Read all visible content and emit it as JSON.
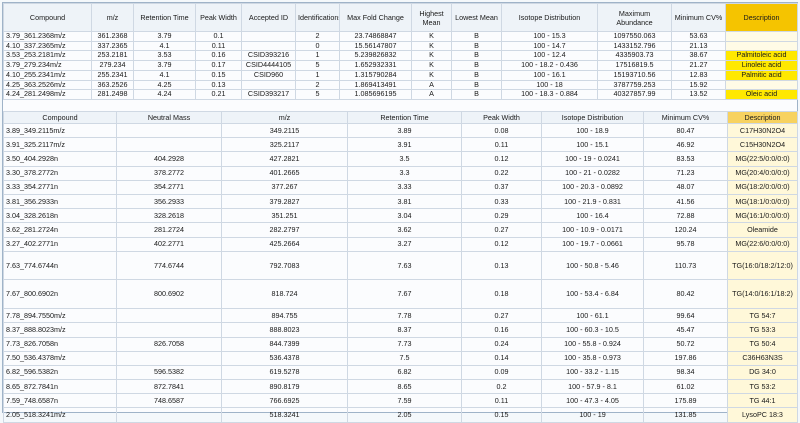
{
  "table1": {
    "headers": [
      "Compound",
      "m/z",
      "Retention Time",
      "Peak Width",
      "Accepted ID",
      "Identifications",
      "Max Fold Change",
      "Highest Mean",
      "Lowest Mean",
      "Isotope Distribution",
      "Maximum Abundance",
      "Minimum CV%",
      "Description"
    ],
    "rows": [
      [
        "3.79_361.2368m/z",
        "361.2368",
        "3.79",
        "0.1",
        "",
        "2",
        "23.74868847",
        "K",
        "B",
        "100 - 15.3",
        "1097550.063",
        "53.63",
        ""
      ],
      [
        "4.10_337.2365m/z",
        "337.2365",
        "4.1",
        "0.11",
        "",
        "0",
        "15.56147807",
        "K",
        "B",
        "100 - 14.7",
        "1433152.796",
        "21.13",
        ""
      ],
      [
        "3.53_253.2181m/z",
        "253.2181",
        "3.53",
        "0.16",
        "CSID393216",
        "1",
        "5.239826832",
        "K",
        "B",
        "100 - 12.4",
        "4335903.73",
        "38.67",
        "Palmitoleic acid"
      ],
      [
        "3.79_279.234m/z",
        "279.234",
        "3.79",
        "0.17",
        "CSID4444105",
        "5",
        "1.652932331",
        "K",
        "B",
        "100 - 18.2 - 0.436",
        "17516819.5",
        "21.27",
        "Linoleic acid"
      ],
      [
        "4.10_255.2341m/z",
        "255.2341",
        "4.1",
        "0.15",
        "CSID960",
        "1",
        "1.315790284",
        "K",
        "B",
        "100 - 16.1",
        "15193710.56",
        "12.83",
        "Palmitic acid"
      ],
      [
        "4.25_363.2526m/z",
        "363.2526",
        "4.25",
        "0.13",
        "",
        "2",
        "1.869413491",
        "A",
        "B",
        "100 - 18",
        "3787759.253",
        "15.92",
        ""
      ],
      [
        "4.24_281.2498m/z",
        "281.2498",
        "4.24",
        "0.21",
        "CSID393217",
        "5",
        "1.085696195",
        "A",
        "B",
        "100 - 18.3 - 0.884",
        "40327857.99",
        "13.52",
        "Oleic acid"
      ]
    ]
  },
  "table2": {
    "headers": [
      "Compound",
      "Neutral Mass",
      "m/z",
      "Retention Time",
      "Peak Width",
      "Isotope Distribution",
      "Minimum CV%",
      "Description"
    ],
    "rows": [
      [
        "3.89_349.2115m/z",
        "",
        "349.2115",
        "3.89",
        "0.08",
        "100 - 18.9",
        "80.47",
        "C17H30N2O4"
      ],
      [
        "3.91_325.2117m/z",
        "",
        "325.2117",
        "3.91",
        "0.11",
        "100 - 15.1",
        "46.92",
        "C15H30N2O4"
      ],
      [
        "3.50_404.2928n",
        "404.2928",
        "427.2821",
        "3.5",
        "0.12",
        "100 - 19 - 0.0241",
        "83.53",
        "MG(22:5/0:0/0:0)"
      ],
      [
        "3.30_378.2772n",
        "378.2772",
        "401.2665",
        "3.3",
        "0.22",
        "100 - 21 - 0.0282",
        "71.23",
        "MG(20:4/0:0/0:0)"
      ],
      [
        "3.33_354.2771n",
        "354.2771",
        "377.267",
        "3.33",
        "0.37",
        "100 - 20.3 - 0.0892",
        "48.07",
        "MG(18:2/0:0/0:0)"
      ],
      [
        "3.81_356.2933n",
        "356.2933",
        "379.2827",
        "3.81",
        "0.33",
        "100 - 21.9 - 0.831",
        "41.56",
        "MG(18:1/0:0/0:0)"
      ],
      [
        "3.04_328.2618n",
        "328.2618",
        "351.251",
        "3.04",
        "0.29",
        "100 - 16.4",
        "72.88",
        "MG(16:1/0:0/0:0)"
      ],
      [
        "3.62_281.2724n",
        "281.2724",
        "282.2797",
        "3.62",
        "0.27",
        "100 - 10.9 - 0.0171",
        "120.24",
        "Oleamide"
      ],
      [
        "3.27_402.2771n",
        "402.2771",
        "425.2664",
        "3.27",
        "0.12",
        "100 - 19.7 - 0.0661",
        "95.78",
        "MG(22:6/0:0/0:0)"
      ],
      [
        "7.63_774.6744n",
        "774.6744",
        "792.7083",
        "7.63",
        "0.13",
        "100 - 50.8 - 5.46",
        "110.73",
        "TG(16:0/18:2/12:0)"
      ],
      [
        "7.67_800.6902n",
        "800.6902",
        "818.724",
        "7.67",
        "0.18",
        "100 - 53.4 - 6.84",
        "80.42",
        "TG(14:0/16:1/18:2)"
      ],
      [
        "7.78_894.7550m/z",
        "",
        "894.755",
        "7.78",
        "0.27",
        "100 - 61.1",
        "99.64",
        "TG 54:7"
      ],
      [
        "8.37_888.8023m/z",
        "",
        "888.8023",
        "8.37",
        "0.16",
        "100 - 60.3 - 10.5",
        "45.47",
        "TG 53:3"
      ],
      [
        "7.73_826.7058n",
        "826.7058",
        "844.7399",
        "7.73",
        "0.24",
        "100 - 55.8 - 0.924",
        "50.72",
        "TG 50:4"
      ],
      [
        "7.50_536.4378m/z",
        "",
        "536.4378",
        "7.5",
        "0.14",
        "100 - 35.8 - 0.973",
        "197.86",
        "C36H63N3S"
      ],
      [
        "6.82_596.5382n",
        "596.5382",
        "619.5278",
        "6.82",
        "0.09",
        "100 - 33.2 - 1.15",
        "98.34",
        "DG 34:0"
      ],
      [
        "8.65_872.7841n",
        "872.7841",
        "890.8179",
        "8.65",
        "0.2",
        "100 - 57.9 - 8.1",
        "61.02",
        "TG 53:2"
      ],
      [
        "7.59_748.6587n",
        "748.6587",
        "766.6925",
        "7.59",
        "0.11",
        "100 - 47.3 - 4.05",
        "175.89",
        "TG 44:1"
      ],
      [
        "2.05_518.3241m/z",
        "",
        "518.3241",
        "2.05",
        "0.15",
        "100 - 19",
        "131.85",
        "LysoPC 18:3"
      ]
    ]
  }
}
